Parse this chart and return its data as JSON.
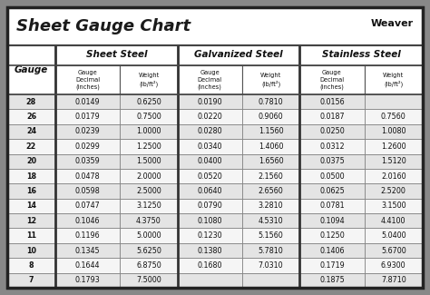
{
  "title": "Sheet Gauge Chart",
  "bg_outer": "#888888",
  "bg_white": "#ffffff",
  "bg_title": "#ffffff",
  "row_colors": [
    "#e8e8e8",
    "#f8f8f8"
  ],
  "header_row1_bg": "#ffffff",
  "border_color": "#444444",
  "thick_border": "#333333",
  "gauges": [
    28,
    26,
    24,
    22,
    20,
    18,
    16,
    14,
    12,
    11,
    10,
    8,
    7
  ],
  "sheet_steel": {
    "decimal": [
      "0.0149",
      "0.0179",
      "0.0239",
      "0.0299",
      "0.0359",
      "0.0478",
      "0.0598",
      "0.0747",
      "0.1046",
      "0.1196",
      "0.1345",
      "0.1644",
      "0.1793"
    ],
    "weight": [
      "0.6250",
      "0.7500",
      "1.0000",
      "1.2500",
      "1.5000",
      "2.0000",
      "2.5000",
      "3.1250",
      "4.3750",
      "5.0000",
      "5.6250",
      "6.8750",
      "7.5000"
    ]
  },
  "galvanized_steel": {
    "decimal": [
      "0.0190",
      "0.0220",
      "0.0280",
      "0.0340",
      "0.0400",
      "0.0520",
      "0.0640",
      "0.0790",
      "0.1080",
      "0.1230",
      "0.1380",
      "0.1680",
      ""
    ],
    "weight": [
      "0.7810",
      "0.9060",
      "1.1560",
      "1.4060",
      "1.6560",
      "2.1560",
      "2.6560",
      "3.2810",
      "4.5310",
      "5.1560",
      "5.7810",
      "7.0310",
      ""
    ]
  },
  "stainless_steel": {
    "decimal": [
      "0.0156",
      "0.0187",
      "0.0250",
      "0.0312",
      "0.0375",
      "0.0500",
      "0.0625",
      "0.0781",
      "0.1094",
      "0.1250",
      "0.1406",
      "0.1719",
      "0.1875"
    ],
    "weight": [
      "",
      "0.7560",
      "1.0080",
      "1.2600",
      "1.5120",
      "2.0160",
      "2.5200",
      "3.1500",
      "4.4100",
      "5.0400",
      "5.6700",
      "6.9300",
      "7.8710"
    ]
  }
}
